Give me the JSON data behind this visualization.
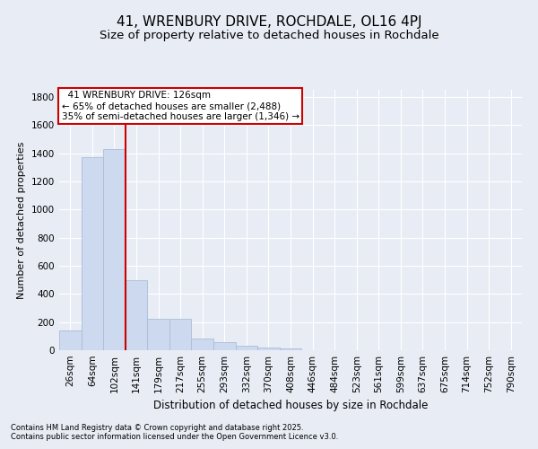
{
  "title": "41, WRENBURY DRIVE, ROCHDALE, OL16 4PJ",
  "subtitle": "Size of property relative to detached houses in Rochdale",
  "xlabel": "Distribution of detached houses by size in Rochdale",
  "ylabel": "Number of detached properties",
  "categories": [
    "26sqm",
    "64sqm",
    "102sqm",
    "141sqm",
    "179sqm",
    "217sqm",
    "255sqm",
    "293sqm",
    "332sqm",
    "370sqm",
    "408sqm",
    "446sqm",
    "484sqm",
    "523sqm",
    "561sqm",
    "599sqm",
    "637sqm",
    "675sqm",
    "714sqm",
    "752sqm",
    "790sqm"
  ],
  "values": [
    140,
    1370,
    1430,
    500,
    225,
    225,
    85,
    55,
    30,
    20,
    10,
    0,
    0,
    0,
    0,
    0,
    0,
    0,
    0,
    0,
    0
  ],
  "bar_color": "#ccd9ee",
  "bar_edge_color": "#aabdd8",
  "vline_color": "#cc0000",
  "annotation_text": "  41 WRENBURY DRIVE: 126sqm  \n← 65% of detached houses are smaller (2,488)\n35% of semi-detached houses are larger (1,346) →",
  "annotation_box_color": "#ffffff",
  "annotation_box_edge": "#cc0000",
  "ylim": [
    0,
    1850
  ],
  "yticks": [
    0,
    200,
    400,
    600,
    800,
    1000,
    1200,
    1400,
    1600,
    1800
  ],
  "background_color": "#e8edf5",
  "grid_color": "#ffffff",
  "footer1": "Contains HM Land Registry data © Crown copyright and database right 2025.",
  "footer2": "Contains public sector information licensed under the Open Government Licence v3.0.",
  "title_fontsize": 11,
  "subtitle_fontsize": 9.5,
  "xlabel_fontsize": 8.5,
  "ylabel_fontsize": 8,
  "tick_fontsize": 7.5,
  "annot_fontsize": 7.5,
  "footer_fontsize": 6
}
